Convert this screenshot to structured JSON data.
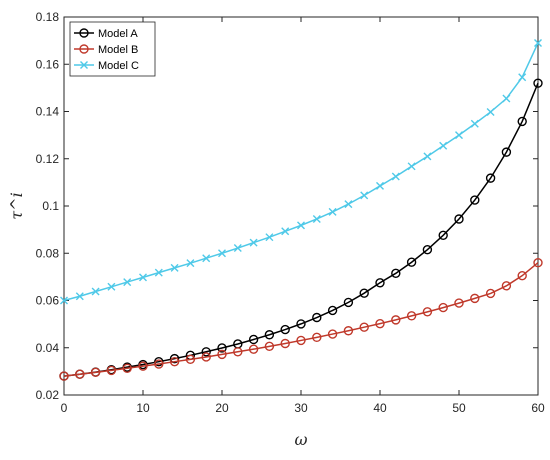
{
  "chart_data": {
    "type": "line",
    "title": "",
    "xlabel": "ω",
    "ylabel": "τ^i",
    "xlim": [
      0,
      60
    ],
    "ylim": [
      0.02,
      0.18
    ],
    "xticks": [
      0,
      10,
      20,
      30,
      40,
      50,
      60
    ],
    "yticks": [
      0.02,
      0.04,
      0.06,
      0.08,
      0.1,
      0.12,
      0.14,
      0.16,
      0.18
    ],
    "xtick_labels": [
      "0",
      "10",
      "20",
      "30",
      "40",
      "50",
      "60"
    ],
    "ytick_labels": [
      "0.02",
      "0.04",
      "0.06",
      "0.08",
      "0.1",
      "0.12",
      "0.14",
      "0.16",
      "0.18"
    ],
    "grid": false,
    "legend_position": "top-left",
    "x": [
      0,
      2,
      4,
      6,
      8,
      10,
      12,
      14,
      16,
      18,
      20,
      22,
      24,
      26,
      28,
      30,
      32,
      34,
      36,
      38,
      40,
      42,
      44,
      46,
      48,
      50,
      52,
      54,
      56,
      58,
      60
    ],
    "series": [
      {
        "name": "Model A",
        "color": "#000000",
        "marker": "circle",
        "values": [
          0.028,
          0.0288,
          0.0297,
          0.0307,
          0.0318,
          0.0329,
          0.0341,
          0.0354,
          0.0368,
          0.0383,
          0.0399,
          0.0416,
          0.0435,
          0.0455,
          0.0477,
          0.0501,
          0.0528,
          0.0558,
          0.0592,
          0.0631,
          0.0675,
          0.0715,
          0.0762,
          0.0815,
          0.0876,
          0.0945,
          0.1025,
          0.1118,
          0.1228,
          0.1358,
          0.152
        ]
      },
      {
        "name": "Model B",
        "color": "#c0392b",
        "marker": "circle",
        "values": [
          0.028,
          0.0288,
          0.0296,
          0.0304,
          0.0313,
          0.0322,
          0.0331,
          0.0341,
          0.0351,
          0.0361,
          0.0372,
          0.0383,
          0.0394,
          0.0406,
          0.0418,
          0.0431,
          0.0444,
          0.0458,
          0.0472,
          0.0487,
          0.0502,
          0.0518,
          0.0535,
          0.0552,
          0.057,
          0.0589,
          0.0609,
          0.063,
          0.0662,
          0.0705,
          0.076
        ]
      },
      {
        "name": "Model C",
        "color": "#4fc9e8",
        "marker": "x",
        "values": [
          0.06,
          0.0618,
          0.0638,
          0.0658,
          0.0678,
          0.0698,
          0.0718,
          0.0738,
          0.0758,
          0.0779,
          0.08,
          0.0822,
          0.0845,
          0.0868,
          0.0893,
          0.0918,
          0.0945,
          0.0975,
          0.1008,
          0.1045,
          0.1085,
          0.1125,
          0.1168,
          0.121,
          0.1255,
          0.13,
          0.1348,
          0.1398,
          0.1455,
          0.1545,
          0.169
        ]
      }
    ]
  }
}
